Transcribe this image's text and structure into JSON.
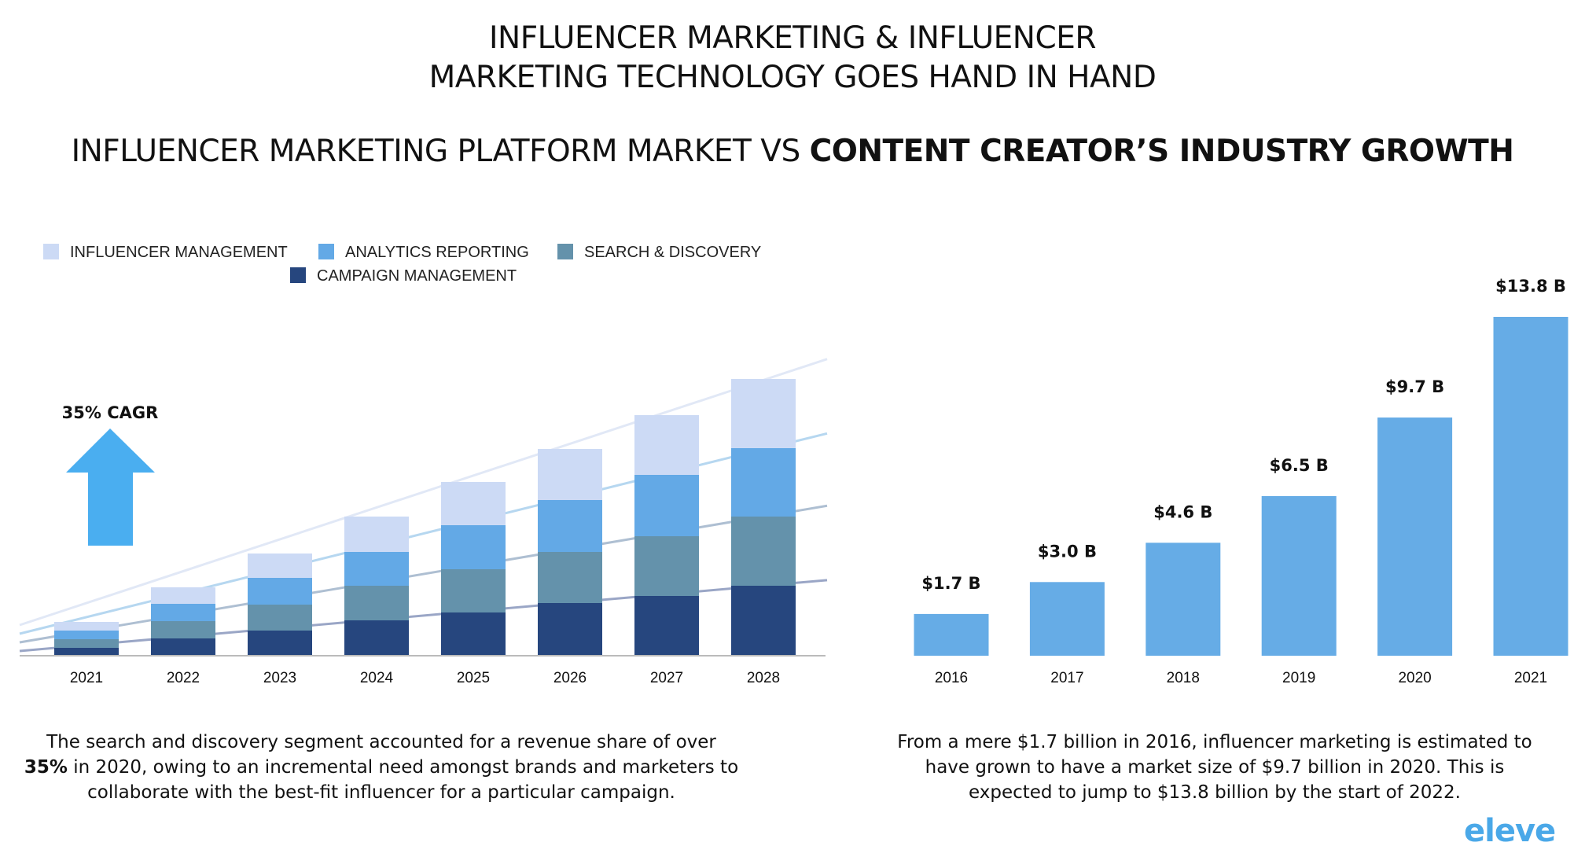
{
  "header": {
    "title_line1": "INFLUENCER MARKETING & INFLUENCER",
    "title_line2": "MARKETING TECHNOLOGY GOES HAND IN HAND",
    "subtitle_regular": "INFLUENCER MARKETING PLATFORM MARKET VS ",
    "subtitle_bold": "CONTENT CREATOR’S INDUSTRY GROWTH"
  },
  "cagr_label": "35% CAGR",
  "colors": {
    "influencer_management": "#ccdaf5",
    "analytics_reporting": "#63a9e6",
    "search_discovery": "#6492ab",
    "campaign_management": "#26467e",
    "market_bar": "#66ace6",
    "arrow": "#4aaef0",
    "brand": "#4aa8e8"
  },
  "chart_data": [
    {
      "type": "bar",
      "stacked": true,
      "categories": [
        "2021",
        "2022",
        "2023",
        "2024",
        "2025",
        "2026",
        "2027",
        "2028"
      ],
      "series": [
        {
          "name": "CAMPAIGN MANAGEMENT",
          "values": [
            10,
            22,
            32,
            45,
            55,
            67,
            76,
            89
          ]
        },
        {
          "name": "SEARCH & DISCOVERY",
          "values": [
            11,
            22,
            33,
            44,
            55,
            65,
            76,
            88
          ]
        },
        {
          "name": "ANALYTICS REPORTING",
          "values": [
            11,
            22,
            34,
            43,
            56,
            66,
            78,
            87
          ]
        },
        {
          "name": "INFLUENCER MANAGEMENT",
          "values": [
            11,
            21,
            31,
            45,
            55,
            65,
            76,
            88
          ]
        }
      ],
      "ylim": [
        0,
        380
      ],
      "grid": false,
      "legend": "top",
      "trend_lines": true
    },
    {
      "type": "bar",
      "categories": [
        "2016",
        "2017",
        "2018",
        "2019",
        "2020",
        "2021"
      ],
      "values": [
        1.7,
        3.0,
        4.6,
        6.5,
        9.7,
        13.8
      ],
      "data_labels": [
        "$1.7 B",
        "$3.0 B",
        "$4.6 B",
        "$6.5 B",
        "$9.7 B",
        "$13.8 B"
      ],
      "grid": false
    }
  ],
  "captions": {
    "left_part1": "The search and discovery segment accounted for a revenue share of over ",
    "left_bold": "35%",
    "left_part2": "in 2020, owing to an incremental need amongst brands and marketers to collaborate with the best-fit influencer for a particular campaign.",
    "right": "From a mere $1.7 billion in 2016, influencer marketing is estimated to have grown to have a market size of $9.7 billion in 2020. This is expected to jump to $13.8 billion by the start of 2022."
  },
  "brand": "eleve"
}
